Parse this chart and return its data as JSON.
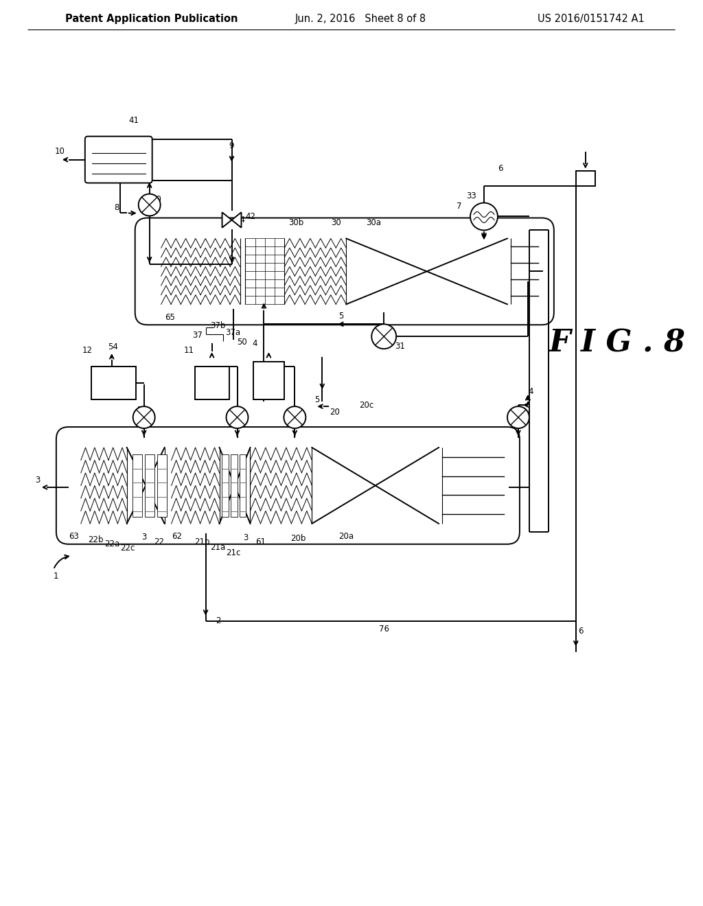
{
  "title_left": "Patent Application Publication",
  "title_mid": "Jun. 2, 2016   Sheet 8 of 8",
  "title_right": "US 2016/0151742 A1",
  "fig_label": "F I G . 8",
  "bg_color": "#ffffff",
  "line_color": "#000000",
  "header_fontsize": 10.5,
  "label_fontsize": 8.5
}
